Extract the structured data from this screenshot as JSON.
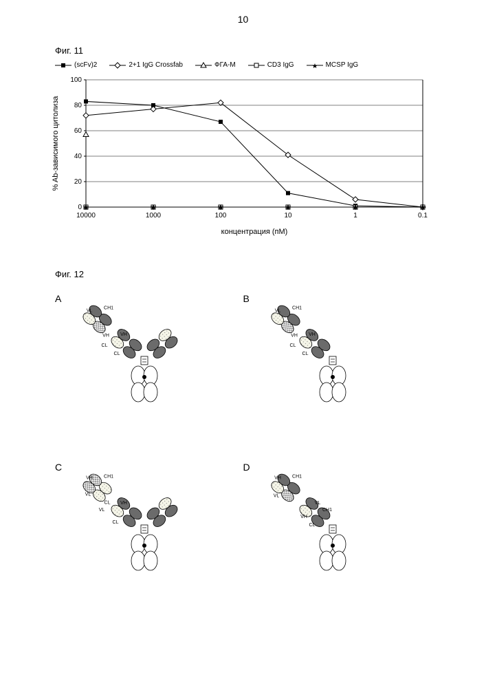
{
  "page_number": "10",
  "fig11": {
    "label": "Фиг. 11",
    "legend": [
      {
        "marker": "filled-square",
        "label": "(scFv)2"
      },
      {
        "marker": "open-diamond",
        "label": "2+1 IgG Crossfab"
      },
      {
        "marker": "open-triangle",
        "label": "ФГА-М"
      },
      {
        "marker": "open-square",
        "label": "CD3 IgG"
      },
      {
        "marker": "star",
        "label": "MCSP IgG"
      }
    ],
    "chart": {
      "type": "line",
      "xlabel": "концентрация (пМ)",
      "ylabel": "% Ab-зависимого цитолиза",
      "xlim": [
        10000,
        0.1
      ],
      "ylim": [
        0,
        100
      ],
      "xticks": [
        10000,
        1000,
        100,
        10,
        1,
        0.1
      ],
      "yticks": [
        0,
        20,
        40,
        60,
        80,
        100
      ],
      "xscale": "log",
      "background": "#ffffff",
      "gridline_color": "#000000",
      "axis_fontsize": 10,
      "label_fontsize": 11,
      "series": [
        {
          "name": "(scFv)2",
          "marker": "filled-square",
          "color": "#000000",
          "x": [
            10000,
            1000,
            100,
            10,
            1,
            0.1
          ],
          "y": [
            83,
            80,
            67,
            11,
            1,
            0
          ]
        },
        {
          "name": "2+1 IgG Crossfab",
          "marker": "open-diamond",
          "color": "#000000",
          "x": [
            10000,
            1000,
            100,
            10,
            1,
            0.1
          ],
          "y": [
            72,
            77,
            82,
            41,
            6,
            0
          ]
        },
        {
          "name": "ФГА-М",
          "marker": "open-triangle",
          "color": "#000000",
          "x": [
            10000
          ],
          "y": [
            57
          ]
        },
        {
          "name": "CD3 IgG",
          "marker": "open-square",
          "color": "#000000",
          "x": [
            10000,
            1000,
            100,
            10,
            1,
            0.1
          ],
          "y": [
            0,
            0,
            0,
            0,
            0,
            0
          ]
        },
        {
          "name": "MCSP IgG",
          "marker": "star",
          "color": "#000000",
          "x": [
            10000,
            1000,
            100,
            10,
            1,
            0.1
          ],
          "y": [
            0,
            0,
            0,
            0,
            0,
            0
          ]
        }
      ]
    }
  },
  "fig12": {
    "label": "Фиг. 12",
    "panels": [
      {
        "letter": "A",
        "type": "bispecific-2arm",
        "domain_labels": [
          "VL",
          "CH1",
          "VH",
          "CL",
          "VH",
          "CL"
        ]
      },
      {
        "letter": "B",
        "type": "bispecific-1arm",
        "domain_labels": [
          "VL",
          "CH1",
          "VH",
          "CL"
        ]
      },
      {
        "letter": "C",
        "type": "bispecific-2arm-alt",
        "domain_labels": [
          "VH",
          "CH1",
          "VL",
          "CL",
          "VL",
          "VH",
          "CL"
        ]
      },
      {
        "letter": "D",
        "type": "bispecific-1arm-alt",
        "domain_labels": [
          "VH",
          "CH1",
          "VL",
          "VL",
          "CH1",
          "VH",
          "CL"
        ]
      }
    ],
    "colors": {
      "light_dotted": "#f5f5e8",
      "dark_gray": "#6b6b6b",
      "checker": "#888888",
      "outline": "#000000",
      "white": "#ffffff"
    },
    "label_fontsize": 7
  }
}
